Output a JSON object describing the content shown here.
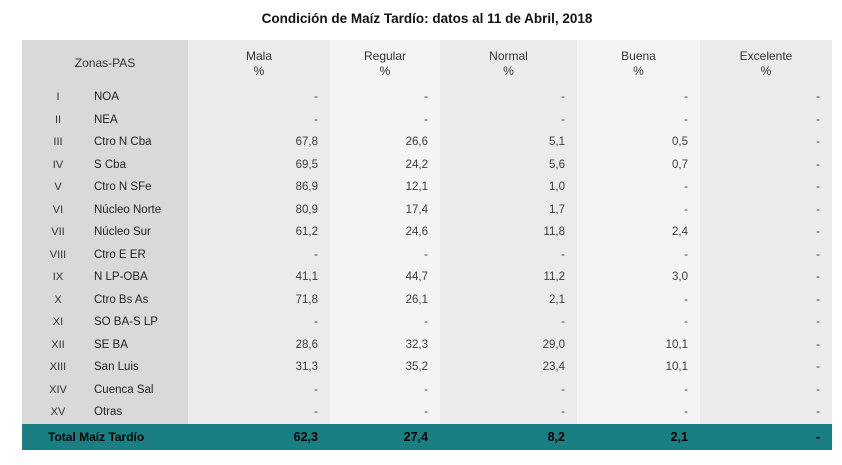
{
  "title": "Condición de Maíz Tardío: datos al 11 de Abril, 2018",
  "table": {
    "zone_header": "Zonas-PAS",
    "unit": "%",
    "columns": [
      "Mala",
      "Regular",
      "Normal",
      "Buena",
      "Excelente"
    ],
    "rows": [
      {
        "roman": "I",
        "zone": "NOA",
        "values": [
          "-",
          "-",
          "-",
          "-",
          "-"
        ]
      },
      {
        "roman": "II",
        "zone": "NEA",
        "values": [
          "-",
          "-",
          "-",
          "-",
          "-"
        ]
      },
      {
        "roman": "III",
        "zone": "Ctro N Cba",
        "values": [
          "67,8",
          "26,6",
          "5,1",
          "0,5",
          "-"
        ]
      },
      {
        "roman": "IV",
        "zone": "S Cba",
        "values": [
          "69,5",
          "24,2",
          "5,6",
          "0,7",
          "-"
        ]
      },
      {
        "roman": "V",
        "zone": "Ctro N SFe",
        "values": [
          "86,9",
          "12,1",
          "1,0",
          "-",
          "-"
        ]
      },
      {
        "roman": "VI",
        "zone": "Núcleo Norte",
        "values": [
          "80,9",
          "17,4",
          "1,7",
          "-",
          "-"
        ]
      },
      {
        "roman": "VII",
        "zone": "Núcleo Sur",
        "values": [
          "61,2",
          "24,6",
          "11,8",
          "2,4",
          "-"
        ]
      },
      {
        "roman": "VIII",
        "zone": "Ctro E ER",
        "values": [
          "-",
          "-",
          "-",
          "-",
          "-"
        ]
      },
      {
        "roman": "IX",
        "zone": "N LP-OBA",
        "values": [
          "41,1",
          "44,7",
          "11,2",
          "3,0",
          "-"
        ]
      },
      {
        "roman": "X",
        "zone": "Ctro Bs As",
        "values": [
          "71,8",
          "26,1",
          "2,1",
          "-",
          "-"
        ]
      },
      {
        "roman": "XI",
        "zone": "SO BA-S LP",
        "values": [
          "-",
          "-",
          "-",
          "-",
          "-"
        ]
      },
      {
        "roman": "XII",
        "zone": "SE BA",
        "values": [
          "28,6",
          "32,3",
          "29,0",
          "10,1",
          "-"
        ]
      },
      {
        "roman": "XIII",
        "zone": "San Luis",
        "values": [
          "31,3",
          "35,2",
          "23,4",
          "10,1",
          "-"
        ]
      },
      {
        "roman": "XIV",
        "zone": "Cuenca Sal",
        "values": [
          "-",
          "-",
          "-",
          "-",
          "-"
        ]
      },
      {
        "roman": "XV",
        "zone": "Otras",
        "values": [
          "-",
          "-",
          "-",
          "-",
          "-"
        ]
      }
    ],
    "total": {
      "label": "Total Maíz Tardío",
      "values": [
        "62,3",
        "27,4",
        "8,2",
        "2,1",
        "-"
      ]
    }
  },
  "colors": {
    "zone_column_bg": "#d9d9d9",
    "column_bg_odd": "#ebebeb",
    "column_bg_even": "#f4f4f4",
    "total_row_bg": "#1a7f82",
    "title_text": "#111111",
    "body_text": "#3c3c3c"
  },
  "chart_data": {
    "type": "table",
    "title": "Condición de Maíz Tardío: datos al 11 de Abril, 2018",
    "row_header": "Zonas-PAS",
    "columns": [
      "Mala %",
      "Regular %",
      "Normal %",
      "Buena %",
      "Excelente %"
    ],
    "rows": [
      {
        "zone": "I NOA",
        "values": [
          null,
          null,
          null,
          null,
          null
        ]
      },
      {
        "zone": "II NEA",
        "values": [
          null,
          null,
          null,
          null,
          null
        ]
      },
      {
        "zone": "III Ctro N Cba",
        "values": [
          67.8,
          26.6,
          5.1,
          0.5,
          null
        ]
      },
      {
        "zone": "IV S Cba",
        "values": [
          69.5,
          24.2,
          5.6,
          0.7,
          null
        ]
      },
      {
        "zone": "V Ctro N SFe",
        "values": [
          86.9,
          12.1,
          1.0,
          null,
          null
        ]
      },
      {
        "zone": "VI Núcleo Norte",
        "values": [
          80.9,
          17.4,
          1.7,
          null,
          null
        ]
      },
      {
        "zone": "VII Núcleo Sur",
        "values": [
          61.2,
          24.6,
          11.8,
          2.4,
          null
        ]
      },
      {
        "zone": "VIII Ctro E ER",
        "values": [
          null,
          null,
          null,
          null,
          null
        ]
      },
      {
        "zone": "IX N LP-OBA",
        "values": [
          41.1,
          44.7,
          11.2,
          3.0,
          null
        ]
      },
      {
        "zone": "X Ctro Bs As",
        "values": [
          71.8,
          26.1,
          2.1,
          null,
          null
        ]
      },
      {
        "zone": "XI SO BA-S LP",
        "values": [
          null,
          null,
          null,
          null,
          null
        ]
      },
      {
        "zone": "XII SE BA",
        "values": [
          28.6,
          32.3,
          29.0,
          10.1,
          null
        ]
      },
      {
        "zone": "XIII San Luis",
        "values": [
          31.3,
          35.2,
          23.4,
          10.1,
          null
        ]
      },
      {
        "zone": "XIV Cuenca Sal",
        "values": [
          null,
          null,
          null,
          null,
          null
        ]
      },
      {
        "zone": "XV Otras",
        "values": [
          null,
          null,
          null,
          null,
          null
        ]
      }
    ],
    "total_row": {
      "zone": "Total Maíz Tardío",
      "values": [
        62.3,
        27.4,
        8.2,
        2.1,
        null
      ]
    }
  }
}
